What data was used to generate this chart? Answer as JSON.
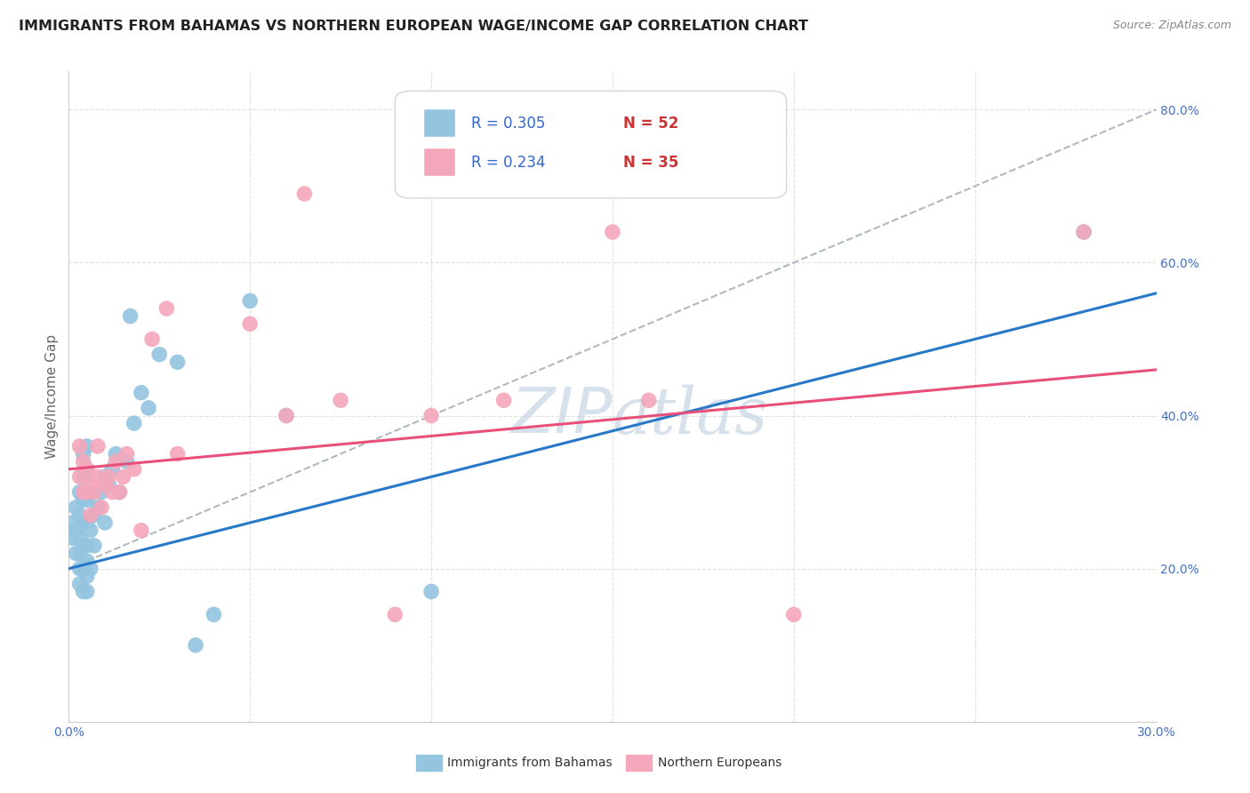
{
  "title": "IMMIGRANTS FROM BAHAMAS VS NORTHERN EUROPEAN WAGE/INCOME GAP CORRELATION CHART",
  "source": "Source: ZipAtlas.com",
  "ylabel": "Wage/Income Gap",
  "legend_blue_r": "0.305",
  "legend_blue_n": "52",
  "legend_pink_r": "0.234",
  "legend_pink_n": "35",
  "legend_blue_label": "Immigrants from Bahamas",
  "legend_pink_label": "Northern Europeans",
  "xlim": [
    0.0,
    0.3
  ],
  "ylim": [
    0.0,
    0.85
  ],
  "yticks_right": [
    0.2,
    0.4,
    0.6,
    0.8
  ],
  "ytickslabels_right": [
    "20.0%",
    "40.0%",
    "60.0%",
    "80.0%"
  ],
  "blue_color": "#93c4e0",
  "pink_color": "#f4a7ba",
  "blue_line_color": "#2878c8",
  "pink_line_color": "#e8507a",
  "dashed_line_color": "#b0b8c0",
  "watermark_color": "#c5d5e5",
  "background_color": "#ffffff",
  "grid_color": "#e0e0e0",
  "blue_x": [
    0.001,
    0.001,
    0.002,
    0.002,
    0.002,
    0.003,
    0.003,
    0.003,
    0.003,
    0.003,
    0.003,
    0.004,
    0.004,
    0.004,
    0.004,
    0.004,
    0.004,
    0.004,
    0.005,
    0.005,
    0.005,
    0.005,
    0.005,
    0.005,
    0.005,
    0.005,
    0.006,
    0.006,
    0.006,
    0.007,
    0.007,
    0.008,
    0.009,
    0.01,
    0.01,
    0.011,
    0.012,
    0.013,
    0.014,
    0.016,
    0.017,
    0.018,
    0.02,
    0.022,
    0.025,
    0.03,
    0.035,
    0.04,
    0.05,
    0.06,
    0.1,
    0.28
  ],
  "blue_y": [
    0.24,
    0.26,
    0.22,
    0.25,
    0.28,
    0.18,
    0.2,
    0.22,
    0.24,
    0.27,
    0.3,
    0.17,
    0.2,
    0.23,
    0.26,
    0.29,
    0.32,
    0.35,
    0.17,
    0.19,
    0.21,
    0.23,
    0.26,
    0.29,
    0.33,
    0.36,
    0.2,
    0.25,
    0.3,
    0.23,
    0.27,
    0.28,
    0.3,
    0.26,
    0.32,
    0.31,
    0.33,
    0.35,
    0.3,
    0.34,
    0.53,
    0.39,
    0.43,
    0.41,
    0.48,
    0.47,
    0.1,
    0.14,
    0.55,
    0.4,
    0.17,
    0.64
  ],
  "pink_x": [
    0.003,
    0.003,
    0.004,
    0.004,
    0.005,
    0.005,
    0.006,
    0.006,
    0.007,
    0.008,
    0.008,
    0.009,
    0.01,
    0.011,
    0.012,
    0.013,
    0.014,
    0.015,
    0.016,
    0.018,
    0.02,
    0.023,
    0.027,
    0.03,
    0.05,
    0.06,
    0.065,
    0.075,
    0.09,
    0.1,
    0.12,
    0.15,
    0.16,
    0.2,
    0.28
  ],
  "pink_y": [
    0.32,
    0.36,
    0.3,
    0.34,
    0.3,
    0.33,
    0.27,
    0.31,
    0.3,
    0.32,
    0.36,
    0.28,
    0.31,
    0.32,
    0.3,
    0.34,
    0.3,
    0.32,
    0.35,
    0.33,
    0.25,
    0.5,
    0.54,
    0.35,
    0.52,
    0.4,
    0.69,
    0.42,
    0.14,
    0.4,
    0.42,
    0.64,
    0.42,
    0.14,
    0.64
  ],
  "blue_trend_x0": 0.0,
  "blue_trend_y0": 0.2,
  "blue_trend_x1": 0.3,
  "blue_trend_y1": 0.56,
  "pink_trend_x0": 0.0,
  "pink_trend_y0": 0.33,
  "pink_trend_x1": 0.3,
  "pink_trend_y1": 0.46,
  "dash_trend_x0": 0.0,
  "dash_trend_y0": 0.2,
  "dash_trend_x1": 0.3,
  "dash_trend_y1": 0.8
}
